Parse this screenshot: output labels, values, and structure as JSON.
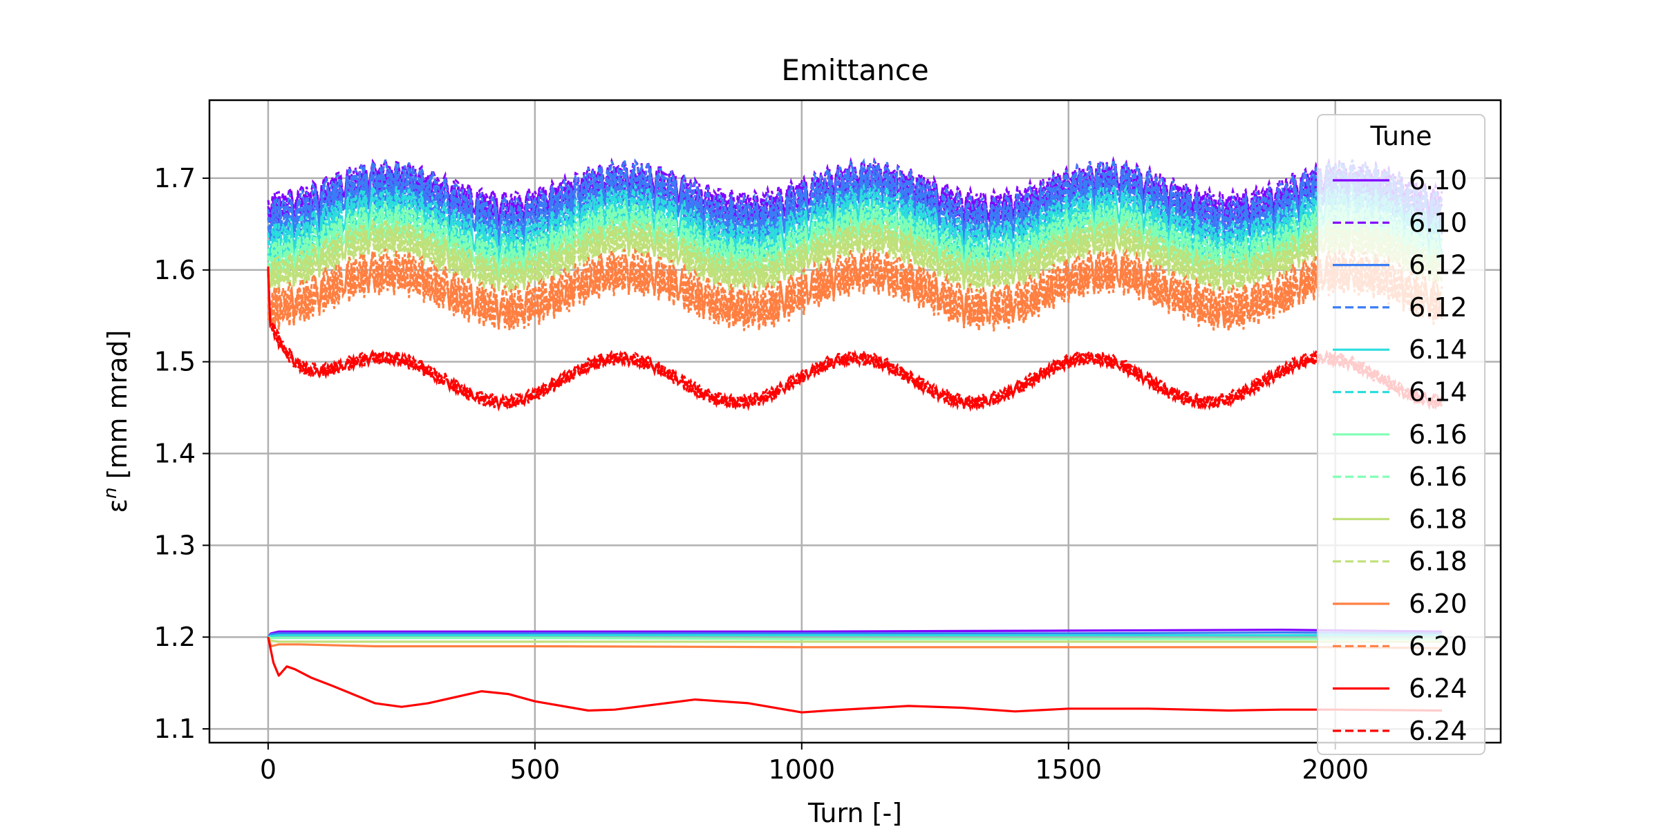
{
  "chart_data": {
    "type": "line",
    "title": "Emittance",
    "xlabel": "Turn [-]",
    "ylabel_symbol": "ε",
    "ylabel_superscript": "n",
    "ylabel_unit": " [mm mrad]",
    "xlim": [
      -110,
      2310
    ],
    "ylim": [
      1.085,
      1.785
    ],
    "xticks": [
      0,
      500,
      1000,
      1500,
      2000
    ],
    "xtick_labels": [
      "0",
      "500",
      "1000",
      "1500",
      "2000"
    ],
    "yticks": [
      1.1,
      1.2,
      1.3,
      1.4,
      1.5,
      1.6,
      1.7
    ],
    "ytick_labels": [
      "1.1",
      "1.2",
      "1.3",
      "1.4",
      "1.5",
      "1.6",
      "1.7"
    ],
    "grid": true,
    "legend": {
      "title": "Tune",
      "position": "right",
      "entries": [
        "6.10",
        "6.10",
        "6.12",
        "6.12",
        "6.14",
        "6.14",
        "6.16",
        "6.16",
        "6.18",
        "6.18",
        "6.20",
        "6.20",
        "6.24",
        "6.24"
      ]
    },
    "colors": {
      "6.10": "#8000ff",
      "6.12": "#3a7cf5",
      "6.14": "#2adddd",
      "6.16": "#80ffb4",
      "6.18": "#c0e07a",
      "6.20": "#ff7f41",
      "6.24": "#ff0000"
    },
    "solid_series": [
      {
        "tune": "6.10",
        "style": "solid",
        "x": [
          0,
          5,
          20,
          100,
          500,
          1000,
          1500,
          1900,
          2200
        ],
        "y": [
          1.2,
          1.204,
          1.206,
          1.206,
          1.206,
          1.206,
          1.207,
          1.208,
          1.206
        ]
      },
      {
        "tune": "6.12",
        "style": "solid",
        "x": [
          0,
          5,
          20,
          100,
          500,
          1000,
          1500,
          1900,
          2200
        ],
        "y": [
          1.2,
          1.203,
          1.204,
          1.204,
          1.204,
          1.204,
          1.204,
          1.205,
          1.204
        ]
      },
      {
        "tune": "6.14",
        "style": "solid",
        "x": [
          0,
          5,
          20,
          100,
          500,
          1000,
          1500,
          1900,
          2200
        ],
        "y": [
          1.2,
          1.201,
          1.202,
          1.202,
          1.202,
          1.202,
          1.202,
          1.202,
          1.202
        ]
      },
      {
        "tune": "6.16",
        "style": "solid",
        "x": [
          0,
          5,
          20,
          100,
          500,
          1000,
          1500,
          1900,
          2200
        ],
        "y": [
          1.2,
          1.199,
          1.199,
          1.199,
          1.199,
          1.198,
          1.198,
          1.198,
          1.198
        ]
      },
      {
        "tune": "6.18",
        "style": "solid",
        "x": [
          0,
          5,
          20,
          100,
          500,
          1000,
          1500,
          1900,
          2200
        ],
        "y": [
          1.2,
          1.196,
          1.195,
          1.195,
          1.195,
          1.195,
          1.195,
          1.195,
          1.195
        ]
      },
      {
        "tune": "6.20",
        "style": "solid",
        "x": [
          0,
          5,
          20,
          60,
          200,
          500,
          1000,
          1500,
          2000,
          2200
        ],
        "y": [
          1.2,
          1.19,
          1.192,
          1.192,
          1.19,
          1.19,
          1.189,
          1.189,
          1.189,
          1.188
        ]
      },
      {
        "tune": "6.24",
        "style": "solid",
        "x": [
          0,
          10,
          20,
          35,
          50,
          80,
          120,
          200,
          250,
          300,
          400,
          450,
          500,
          600,
          650,
          800,
          900,
          1000,
          1050,
          1200,
          1300,
          1400,
          1500,
          1650,
          1800,
          1900,
          2000,
          2200
        ],
        "y": [
          1.2,
          1.172,
          1.158,
          1.168,
          1.165,
          1.156,
          1.147,
          1.128,
          1.124,
          1.128,
          1.141,
          1.138,
          1.13,
          1.12,
          1.121,
          1.132,
          1.128,
          1.118,
          1.12,
          1.125,
          1.123,
          1.119,
          1.122,
          1.122,
          1.12,
          1.121,
          1.121,
          1.12
        ]
      }
    ],
    "dashed_bands": [
      {
        "tune": "6.10",
        "style": "dashed",
        "base": 1.683,
        "amplitude": 0.017,
        "period": 450,
        "phase": 0,
        "width": 0.032
      },
      {
        "tune": "6.12",
        "style": "dashed",
        "base": 1.672,
        "amplitude": 0.02,
        "period": 450,
        "phase": 0,
        "width": 0.045
      },
      {
        "tune": "6.14",
        "style": "dashed",
        "base": 1.648,
        "amplitude": 0.02,
        "period": 450,
        "phase": 0,
        "width": 0.04
      },
      {
        "tune": "6.16",
        "style": "dashed",
        "base": 1.632,
        "amplitude": 0.02,
        "period": 450,
        "phase": 0,
        "width": 0.036
      },
      {
        "tune": "6.18",
        "style": "dashed",
        "base": 1.615,
        "amplitude": 0.02,
        "period": 450,
        "phase": 0,
        "width": 0.032
      },
      {
        "tune": "6.20",
        "style": "dashed",
        "base": 1.578,
        "amplitude": 0.02,
        "period": 450,
        "phase": 0,
        "width": 0.04
      },
      {
        "tune": "6.24",
        "style": "dashed",
        "base": 1.48,
        "amplitude": 0.024,
        "period": 440,
        "phase": 0,
        "width": 0.012,
        "initial_y": 1.6,
        "decay_to": 1.55
      }
    ]
  }
}
